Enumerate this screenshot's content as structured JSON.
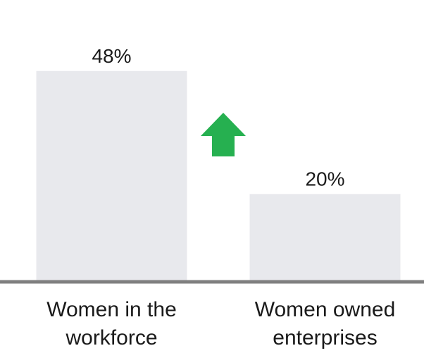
{
  "chart_data": {
    "type": "bar",
    "categories": [
      [
        "Women in the",
        "workforce"
      ],
      [
        "Women owned",
        "enterprises"
      ]
    ],
    "values": [
      48,
      20
    ],
    "data_labels": [
      "48%",
      "20%"
    ],
    "ylim": [
      0,
      60
    ],
    "grid": false,
    "bar_color": "#e8e9ed",
    "axis_color": "#7f7f7f",
    "annotation": {
      "icon": "up-arrow-icon",
      "color": "#26b050"
    }
  }
}
